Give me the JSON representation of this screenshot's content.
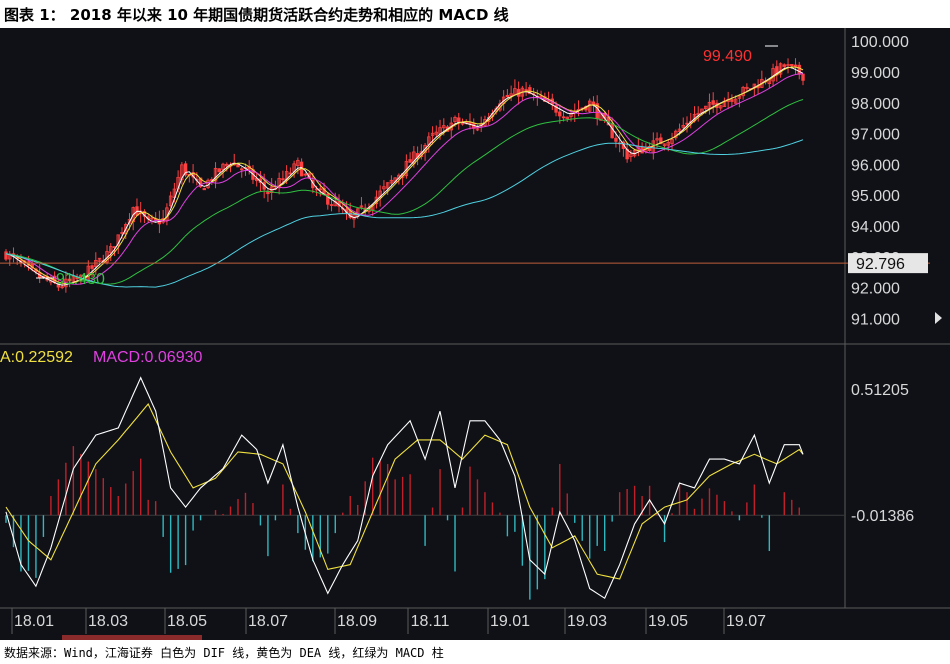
{
  "figure": {
    "title": "图表 1：   2018 年以来 10 年期国债期货活跃合约走势和相应的 MACD 线",
    "source": "数据来源：Wind，江海证券 白色为 DIF 线，黄色为 DEA 线，红绿为 MACD 柱"
  },
  "colors": {
    "background": "#0f1117",
    "candle_up": "#ff4040",
    "ma5": "#ffffff",
    "ma10": "#f0e040",
    "ma20": "#e040e0",
    "ma60": "#30c040",
    "ma120": "#50d0e0",
    "last_price_line": "#c0603a",
    "dif": "#ffffff",
    "dea": "#f0e040",
    "macd_pos": "#c0202a",
    "macd_neg": "#30b8c0",
    "high_label": "#ff3030",
    "low_label": "#30c040",
    "axis_text": "#d8d8d8"
  },
  "chart_data": [
    {
      "type": "candlestick",
      "y_ticks": [
        "100.000",
        "99.000",
        "98.000",
        "97.000",
        "96.000",
        "95.000",
        "94.000",
        "93.000",
        "92.000",
        "91.000"
      ],
      "ylim": [
        90.3,
        100.3
      ],
      "high_marker": "99.490",
      "low_marker": "91.430",
      "last_price": "92.796",
      "last_price_value": 92.796,
      "x_labels": [
        "18.01",
        "18.03",
        "18.05",
        "18.07",
        "18.09",
        "18.11",
        "19.01",
        "19.03",
        "19.05",
        "19.07"
      ],
      "price_path": [
        [
          0,
          93.1
        ],
        [
          8,
          92.4
        ],
        [
          14,
          92.05
        ],
        [
          20,
          92.3
        ],
        [
          28,
          93.2
        ],
        [
          34,
          94.6
        ],
        [
          38,
          94.1
        ],
        [
          42,
          94.2
        ],
        [
          47,
          95.9
        ],
        [
          52,
          95.2
        ],
        [
          56,
          95.7
        ],
        [
          60,
          96.1
        ],
        [
          64,
          95.8
        ],
        [
          70,
          95.1
        ],
        [
          73,
          95.4
        ],
        [
          78,
          96.0
        ],
        [
          82,
          95.2
        ],
        [
          88,
          94.7
        ],
        [
          92,
          94.2
        ],
        [
          96,
          94.6
        ],
        [
          102,
          95.3
        ],
        [
          108,
          96.1
        ],
        [
          114,
          96.9
        ],
        [
          120,
          97.4
        ],
        [
          126,
          97.2
        ],
        [
          132,
          98.1
        ],
        [
          138,
          98.4
        ],
        [
          144,
          98.0
        ],
        [
          150,
          97.6
        ],
        [
          156,
          98.0
        ],
        [
          162,
          97.0
        ],
        [
          166,
          96.3
        ],
        [
          172,
          96.6
        ],
        [
          178,
          96.9
        ],
        [
          184,
          97.6
        ],
        [
          190,
          98.0
        ],
        [
          196,
          98.3
        ],
        [
          202,
          98.7
        ],
        [
          208,
          99.2
        ],
        [
          213,
          98.9
        ]
      ],
      "ma_series": [
        {
          "key": "ma5",
          "lag": 1,
          "offset": 0
        },
        {
          "key": "ma10",
          "lag": 2,
          "offset": 0.05
        },
        {
          "key": "ma20",
          "lag": 4,
          "offset": -0.1
        },
        {
          "key": "ma60",
          "lag": 12,
          "offset": -0.5
        },
        {
          "key": "ma120",
          "lag": 24,
          "offset": -1.0
        }
      ]
    },
    {
      "type": "macd",
      "labels": {
        "dea": "A:0.22592",
        "macd": "MACD:0.06930"
      },
      "y_ticks": [
        "0.51205",
        "-0.01386"
      ],
      "ylim": [
        -0.38,
        0.6
      ],
      "tick_values": [
        0.51205,
        -0.01386
      ],
      "dif_path": [
        [
          0,
          0.0
        ],
        [
          4,
          -0.22
        ],
        [
          8,
          -0.31
        ],
        [
          12,
          -0.15
        ],
        [
          18,
          0.18
        ],
        [
          24,
          0.32
        ],
        [
          30,
          0.35
        ],
        [
          36,
          0.56
        ],
        [
          40,
          0.42
        ],
        [
          44,
          0.1
        ],
        [
          48,
          0.02
        ],
        [
          52,
          0.1
        ],
        [
          58,
          0.18
        ],
        [
          63,
          0.32
        ],
        [
          67,
          0.26
        ],
        [
          70,
          0.12
        ],
        [
          74,
          0.28
        ],
        [
          78,
          0.02
        ],
        [
          82,
          -0.2
        ],
        [
          86,
          -0.34
        ],
        [
          90,
          -0.22
        ],
        [
          94,
          -0.12
        ],
        [
          98,
          0.15
        ],
        [
          102,
          0.28
        ],
        [
          108,
          0.38
        ],
        [
          112,
          0.22
        ],
        [
          116,
          0.42
        ],
        [
          120,
          0.1
        ],
        [
          124,
          0.38
        ],
        [
          128,
          0.38
        ],
        [
          132,
          0.3
        ],
        [
          136,
          0.15
        ],
        [
          140,
          -0.2
        ],
        [
          144,
          -0.26
        ],
        [
          148,
          0.0
        ],
        [
          152,
          -0.12
        ],
        [
          156,
          -0.32
        ],
        [
          160,
          -0.36
        ],
        [
          164,
          -0.22
        ],
        [
          168,
          -0.05
        ],
        [
          172,
          0.05
        ],
        [
          176,
          -0.05
        ],
        [
          180,
          0.12
        ],
        [
          184,
          0.1
        ],
        [
          188,
          0.22
        ],
        [
          192,
          0.22
        ],
        [
          196,
          0.2
        ],
        [
          200,
          0.32
        ],
        [
          204,
          0.12
        ],
        [
          208,
          0.28
        ],
        [
          212,
          0.28
        ],
        [
          216,
          0.12
        ]
      ],
      "dea_path": [
        [
          0,
          0.02
        ],
        [
          6,
          -0.12
        ],
        [
          12,
          -0.2
        ],
        [
          18,
          0.0
        ],
        [
          24,
          0.2
        ],
        [
          30,
          0.3
        ],
        [
          38,
          0.45
        ],
        [
          44,
          0.25
        ],
        [
          50,
          0.1
        ],
        [
          56,
          0.14
        ],
        [
          62,
          0.25
        ],
        [
          68,
          0.24
        ],
        [
          74,
          0.2
        ],
        [
          80,
          0.0
        ],
        [
          86,
          -0.24
        ],
        [
          92,
          -0.22
        ],
        [
          98,
          0.0
        ],
        [
          104,
          0.22
        ],
        [
          110,
          0.3
        ],
        [
          116,
          0.3
        ],
        [
          122,
          0.22
        ],
        [
          128,
          0.32
        ],
        [
          134,
          0.28
        ],
        [
          140,
          0.02
        ],
        [
          146,
          -0.15
        ],
        [
          152,
          -0.1
        ],
        [
          158,
          -0.26
        ],
        [
          164,
          -0.28
        ],
        [
          170,
          -0.05
        ],
        [
          176,
          0.02
        ],
        [
          182,
          0.05
        ],
        [
          188,
          0.15
        ],
        [
          194,
          0.2
        ],
        [
          200,
          0.24
        ],
        [
          206,
          0.2
        ],
        [
          212,
          0.26
        ],
        [
          216,
          0.18
        ]
      ]
    }
  ]
}
